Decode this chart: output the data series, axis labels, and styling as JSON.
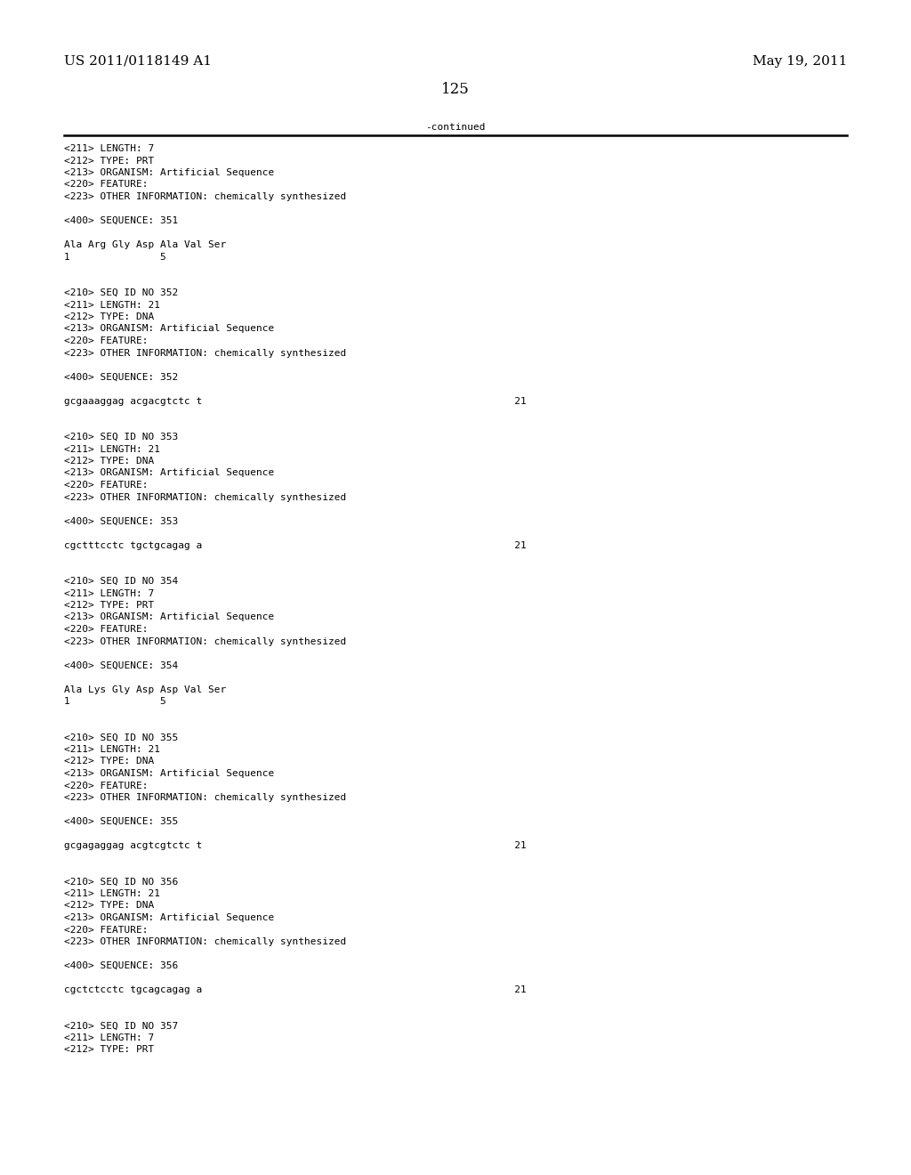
{
  "header_left": "US 2011/0118149 A1",
  "header_right": "May 19, 2011",
  "page_number": "125",
  "continued_text": "-continued",
  "background_color": "#ffffff",
  "text_color": "#000000",
  "font_size_header": 11,
  "font_size_page_num": 12,
  "font_size_body": 8.0,
  "lines": [
    "<211> LENGTH: 7",
    "<212> TYPE: PRT",
    "<213> ORGANISM: Artificial Sequence",
    "<220> FEATURE:",
    "<223> OTHER INFORMATION: chemically synthesized",
    "",
    "<400> SEQUENCE: 351",
    "",
    "Ala Arg Gly Asp Ala Val Ser",
    "1               5",
    "",
    "",
    "<210> SEQ ID NO 352",
    "<211> LENGTH: 21",
    "<212> TYPE: DNA",
    "<213> ORGANISM: Artificial Sequence",
    "<220> FEATURE:",
    "<223> OTHER INFORMATION: chemically synthesized",
    "",
    "<400> SEQUENCE: 352",
    "",
    "gcgaaaggag acgacgtctc t                                                    21",
    "",
    "",
    "<210> SEQ ID NO 353",
    "<211> LENGTH: 21",
    "<212> TYPE: DNA",
    "<213> ORGANISM: Artificial Sequence",
    "<220> FEATURE:",
    "<223> OTHER INFORMATION: chemically synthesized",
    "",
    "<400> SEQUENCE: 353",
    "",
    "cgctttcctc tgctgcagag a                                                    21",
    "",
    "",
    "<210> SEQ ID NO 354",
    "<211> LENGTH: 7",
    "<212> TYPE: PRT",
    "<213> ORGANISM: Artificial Sequence",
    "<220> FEATURE:",
    "<223> OTHER INFORMATION: chemically synthesized",
    "",
    "<400> SEQUENCE: 354",
    "",
    "Ala Lys Gly Asp Asp Val Ser",
    "1               5",
    "",
    "",
    "<210> SEQ ID NO 355",
    "<211> LENGTH: 21",
    "<212> TYPE: DNA",
    "<213> ORGANISM: Artificial Sequence",
    "<220> FEATURE:",
    "<223> OTHER INFORMATION: chemically synthesized",
    "",
    "<400> SEQUENCE: 355",
    "",
    "gcgagaggag acgtcgtctc t                                                    21",
    "",
    "",
    "<210> SEQ ID NO 356",
    "<211> LENGTH: 21",
    "<212> TYPE: DNA",
    "<213> ORGANISM: Artificial Sequence",
    "<220> FEATURE:",
    "<223> OTHER INFORMATION: chemically synthesized",
    "",
    "<400> SEQUENCE: 356",
    "",
    "cgctctcctc tgcagcagag a                                                    21",
    "",
    "",
    "<210> SEQ ID NO 357",
    "<211> LENGTH: 7",
    "<212> TYPE: PRT"
  ]
}
